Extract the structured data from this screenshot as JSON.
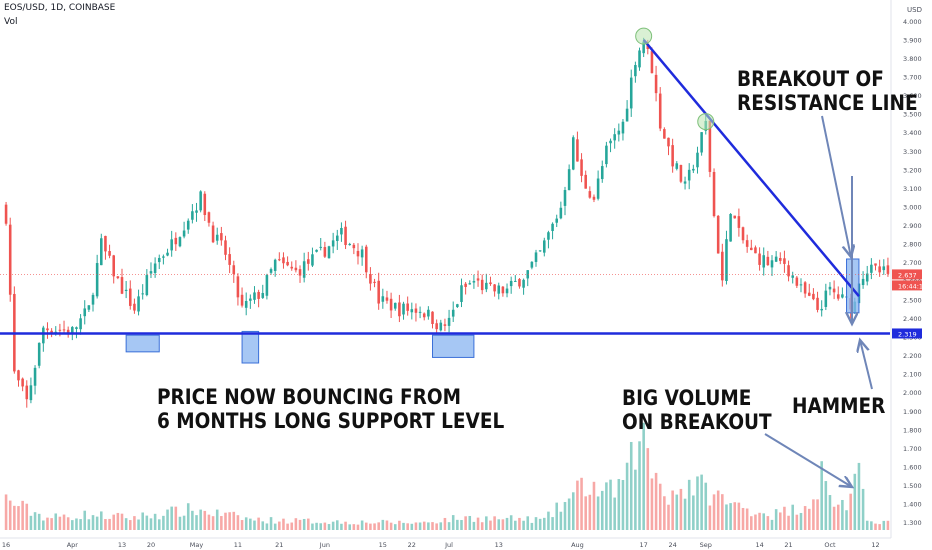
{
  "header": {
    "symbol_line": "EOS/USD, 1D, COINBASE",
    "indicator": "Vol"
  },
  "annotations": {
    "breakout": [
      "BREAKOUT OF",
      "RESISTANCE LINE"
    ],
    "support": [
      "PRICE NOW BOUNCING FROM",
      "6 MONTHS LONG SUPPORT LEVEL"
    ],
    "volume": [
      "BIG VOLUME",
      "ON BREAKOUT"
    ],
    "hammer": "HAMMER"
  },
  "chart_data": {
    "type": "candlestick",
    "y_axis_unit": "USD",
    "ylim": [
      1.25,
      4.05
    ],
    "y_ticks": [
      "4.000",
      "3.900",
      "3.800",
      "3.700",
      "3.600",
      "3.500",
      "3.400",
      "3.300",
      "3.200",
      "3.100",
      "3.000",
      "2.900",
      "2.800",
      "2.700",
      "2.600",
      "2.500",
      "2.400",
      "2.300",
      "2.200",
      "2.100",
      "2.000",
      "1.900",
      "1.800",
      "1.700",
      "1.600",
      "1.500",
      "1.400",
      "1.300"
    ],
    "y_tick_values": [
      4.0,
      3.9,
      3.8,
      3.7,
      3.6,
      3.5,
      3.4,
      3.3,
      3.2,
      3.1,
      3.0,
      2.9,
      2.8,
      2.7,
      2.6,
      2.5,
      2.4,
      2.3,
      2.2,
      2.1,
      2.0,
      1.9,
      1.8,
      1.7,
      1.6,
      1.5,
      1.4,
      1.3
    ],
    "x_ticks": [
      {
        "label": "16",
        "day": 0
      },
      {
        "label": "Apr",
        "day": 16
      },
      {
        "label": "13",
        "day": 28
      },
      {
        "label": "20",
        "day": 35
      },
      {
        "label": "May",
        "day": 46
      },
      {
        "label": "11",
        "day": 56
      },
      {
        "label": "21",
        "day": 66
      },
      {
        "label": "Jun",
        "day": 77
      },
      {
        "label": "15",
        "day": 91
      },
      {
        "label": "22",
        "day": 98
      },
      {
        "label": "Jul",
        "day": 107
      },
      {
        "label": "13",
        "day": 119
      },
      {
        "label": "Aug",
        "day": 138
      },
      {
        "label": "17",
        "day": 154
      },
      {
        "label": "24",
        "day": 161
      },
      {
        "label": "Sep",
        "day": 169
      },
      {
        "label": "14",
        "day": 182
      },
      {
        "label": "21",
        "day": 189
      },
      {
        "label": "Oct",
        "day": 199
      },
      {
        "label": "12",
        "day": 210
      }
    ],
    "total_days": 214,
    "last_price": "2.637",
    "countdown": "16:44:10",
    "support_level": 2.319,
    "support_label": "2.319",
    "close_keypoints": [
      [
        0,
        2.95
      ],
      [
        2,
        2.1
      ],
      [
        5,
        1.95
      ],
      [
        9,
        2.35
      ],
      [
        16,
        2.33
      ],
      [
        20,
        2.45
      ],
      [
        23,
        2.8
      ],
      [
        27,
        2.6
      ],
      [
        31,
        2.45
      ],
      [
        36,
        2.7
      ],
      [
        40,
        2.8
      ],
      [
        44,
        2.95
      ],
      [
        47,
        3.05
      ],
      [
        50,
        2.85
      ],
      [
        53,
        2.75
      ],
      [
        57,
        2.45
      ],
      [
        62,
        2.55
      ],
      [
        65,
        2.7
      ],
      [
        70,
        2.65
      ],
      [
        76,
        2.75
      ],
      [
        81,
        2.85
      ],
      [
        86,
        2.75
      ],
      [
        90,
        2.5
      ],
      [
        95,
        2.45
      ],
      [
        100,
        2.45
      ],
      [
        103,
        2.4
      ],
      [
        105,
        2.35
      ],
      [
        107,
        2.38
      ],
      [
        110,
        2.55
      ],
      [
        113,
        2.6
      ],
      [
        117,
        2.55
      ],
      [
        121,
        2.55
      ],
      [
        126,
        2.65
      ],
      [
        129,
        2.75
      ],
      [
        134,
        3.0
      ],
      [
        137,
        3.35
      ],
      [
        139,
        3.15
      ],
      [
        142,
        3.05
      ],
      [
        145,
        3.3
      ],
      [
        149,
        3.45
      ],
      [
        152,
        3.8
      ],
      [
        154,
        3.9
      ],
      [
        156,
        3.75
      ],
      [
        158,
        3.45
      ],
      [
        161,
        3.25
      ],
      [
        164,
        3.1
      ],
      [
        167,
        3.3
      ],
      [
        169,
        3.45
      ],
      [
        171,
        2.95
      ],
      [
        173,
        2.6
      ],
      [
        175,
        3.0
      ],
      [
        177,
        2.85
      ],
      [
        180,
        2.75
      ],
      [
        184,
        2.7
      ],
      [
        188,
        2.7
      ],
      [
        192,
        2.55
      ],
      [
        196,
        2.45
      ],
      [
        199,
        2.55
      ],
      [
        202,
        2.5
      ],
      [
        205,
        2.48
      ],
      [
        206,
        2.62
      ],
      [
        208,
        2.66
      ],
      [
        211,
        2.65
      ],
      [
        213,
        2.637
      ]
    ],
    "volume_keypoints": [
      [
        0,
        0.3
      ],
      [
        5,
        0.2
      ],
      [
        10,
        0.12
      ],
      [
        20,
        0.15
      ],
      [
        30,
        0.12
      ],
      [
        45,
        0.2
      ],
      [
        60,
        0.1
      ],
      [
        80,
        0.08
      ],
      [
        100,
        0.07
      ],
      [
        110,
        0.12
      ],
      [
        130,
        0.1
      ],
      [
        136,
        0.3
      ],
      [
        140,
        0.45
      ],
      [
        145,
        0.35
      ],
      [
        150,
        0.5
      ],
      [
        153,
        1.0
      ],
      [
        156,
        0.6
      ],
      [
        160,
        0.35
      ],
      [
        166,
        0.45
      ],
      [
        171,
        0.35
      ],
      [
        175,
        0.25
      ],
      [
        185,
        0.15
      ],
      [
        190,
        0.2
      ],
      [
        195,
        0.3
      ],
      [
        197,
        0.55
      ],
      [
        199,
        0.3
      ],
      [
        203,
        0.25
      ],
      [
        206,
        0.5
      ],
      [
        208,
        0.1
      ],
      [
        213,
        0.08
      ]
    ],
    "grid": false
  },
  "colors": {
    "bull": "#26a69a",
    "bear": "#ef5350",
    "bull_vol": "#8fd0c8",
    "bear_vol": "#f7a8a6",
    "trendline": "#1f2bdc",
    "support_line": "#1f2bdc",
    "zone_fill": "#88b4f0",
    "zone_stroke": "#3a6fd8",
    "arrow": "#6f86b8",
    "axis_text": "#4a4e5a",
    "last_price_badge": "#ef5350",
    "support_badge": "#1f2bdc"
  }
}
